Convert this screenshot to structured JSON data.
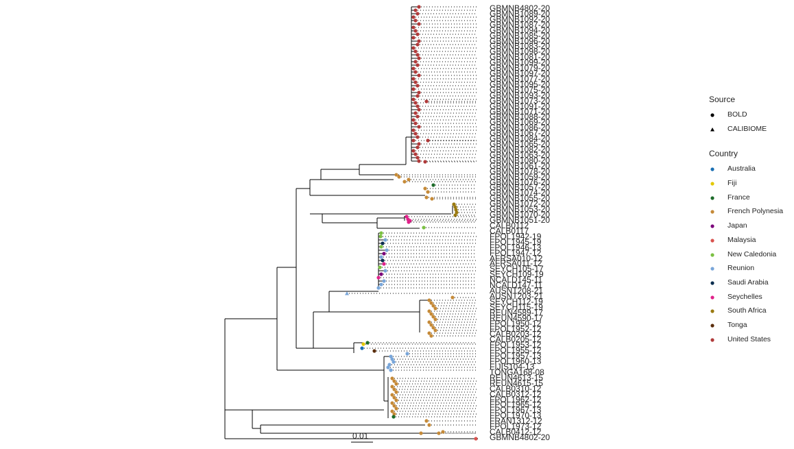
{
  "scale_label": "0.01",
  "legend": {
    "source_title": "Source",
    "sources": [
      {
        "label": "BOLD",
        "shape": "circle"
      },
      {
        "label": "CALIBIOME",
        "shape": "triangle"
      }
    ],
    "country_title": "Country",
    "countries": [
      {
        "label": "Australia",
        "color": "#1a6fb3"
      },
      {
        "label": "Fiji",
        "color": "#e3c800"
      },
      {
        "label": "France",
        "color": "#1d6b2a"
      },
      {
        "label": "French Polynesia",
        "color": "#c58a38"
      },
      {
        "label": "Japan",
        "color": "#7b007b"
      },
      {
        "label": "Malaysia",
        "color": "#d9534f"
      },
      {
        "label": "New Caledonia",
        "color": "#7bc043"
      },
      {
        "label": "Reunion",
        "color": "#79a6d9"
      },
      {
        "label": "Saudi Arabia",
        "color": "#0b2e4f"
      },
      {
        "label": "Seychelles",
        "color": "#e0228a"
      },
      {
        "label": "South Africa",
        "color": "#9a7a12"
      },
      {
        "label": "Tonga",
        "color": "#5a2d0c"
      },
      {
        "label": "United States",
        "color": "#b03a3a"
      }
    ]
  },
  "tip_labels": [
    "GBMNB4802-20",
    "GBMNB1089-20",
    "GBMNB1092-20",
    "GBMNB1087-20",
    "GBMNB1094-20",
    "GBMNB1085-20",
    "GBMNB1096-20",
    "GBMNB1083-20",
    "GBMNB1098-20",
    "GBMNB1081-20",
    "GBMNB1099-20",
    "GBMNB1079-20",
    "GBMNB1097-20",
    "GBMNB1077-20",
    "GBMNB1095-20",
    "GBMNB1075-20",
    "GBMNB1093-20",
    "GBMNB1073-20",
    "GBMNB1091-20",
    "GBMNB1071-20",
    "GBMNB1088-20",
    "GBMNB1069-20",
    "GBMNB1086-20",
    "GBMNB1067-20",
    "GBMNB1084-20",
    "GBMNB1065-20",
    "GBMNB1082-20",
    "GBMNB1063-20",
    "GBMNB1080-20",
    "GBMNB1061-20",
    "GBMNB1078-20",
    "GBMNB1059-20",
    "GBMNB1076-20",
    "GBMNB1057-20",
    "GBMNB1074-20",
    "GBMNB1055-20",
    "GBMNB1072-20",
    "GBMNB1053-20",
    "GBMNB1070-20",
    "GBMNB1051-20",
    "CALB0112",
    "CALB0117",
    "FPOL1942-19",
    "FPOL1945-19",
    "FPOL1946-13",
    "FPOL1947-12",
    "AFRSA010-12",
    "AFRSA011-12",
    "SEYCH105-17",
    "SEYCH109-19",
    "NCALD145-11",
    "NCALD147-11",
    "AUSNT208-21",
    "AUSNT203-21",
    "SEYCH112-19",
    "SEYCH115-19",
    "REUN4589-17",
    "REUN4590-17",
    "FPOL1950-12",
    "FPOL1952-12",
    "CALB0203-12",
    "CALB0205-12",
    "FPOL1953-12",
    "FPOL1955-12",
    "FPOL1957-13",
    "FPOL1960-13",
    "FIJIS104-13",
    "TONGA168-08",
    "REUN4613-15",
    "REUN4615-15",
    "CALB0310-12",
    "CALB0312-12",
    "FPOL1962-12",
    "FPOL1965-12",
    "FPOL1967-13",
    "FPOL1970-13",
    "FRAN1312-12",
    "FPOL1973-12",
    "CALB0412-12",
    "GBMNB4802-20"
  ]
}
